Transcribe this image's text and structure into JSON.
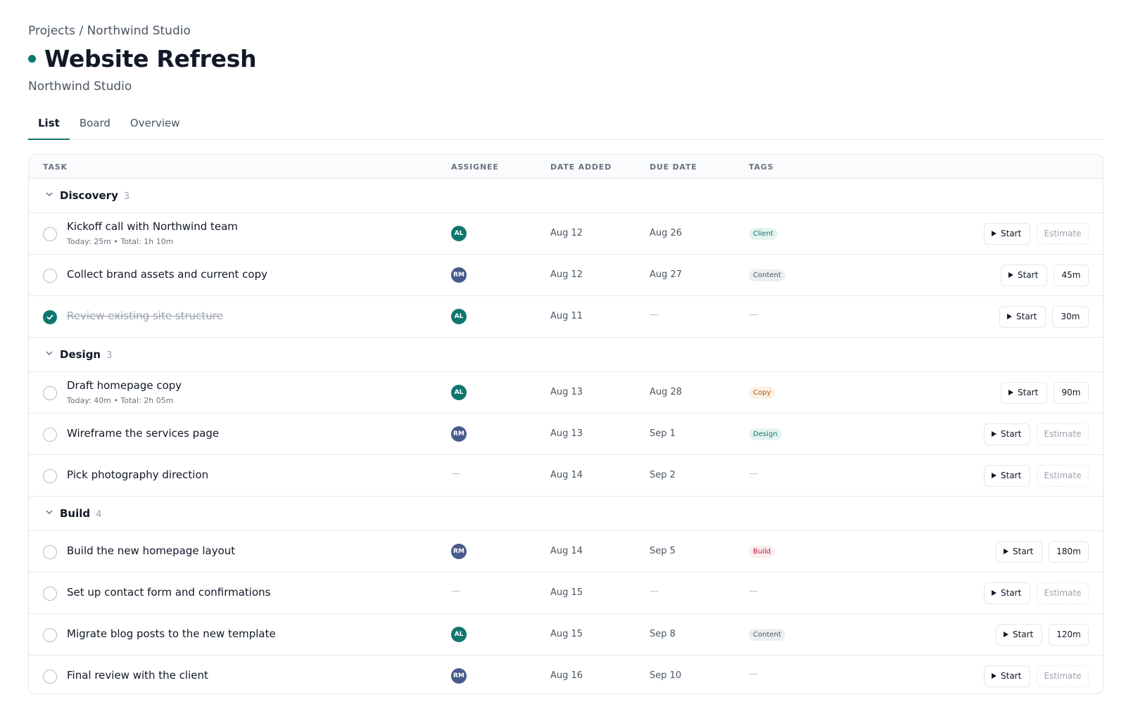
{
  "breadcrumb": {
    "parent": "Projects",
    "separator": "/",
    "current": "Northwind Studio"
  },
  "project": {
    "title": "Website Refresh",
    "subtitle": "Northwind Studio",
    "status_color": "#0f766e"
  },
  "tabs": [
    {
      "label": "List",
      "active": true
    },
    {
      "label": "Board",
      "active": false
    },
    {
      "label": "Overview",
      "active": false
    }
  ],
  "columns": {
    "task": "TASK",
    "assignee": "ASSIGNEE",
    "date_added": "DATE ADDED",
    "due_date": "DUE DATE",
    "tags": "TAGS"
  },
  "empty_value": "—",
  "actions": {
    "start_label": "Start",
    "estimate_placeholder": "Estimate"
  },
  "groups": [
    {
      "name": "Discovery",
      "count": "3",
      "tasks": [
        {
          "name": "Kickoff call with Northwind team",
          "meta": "Today: 25m • Total: 1h 10m",
          "done": false,
          "assignee": "AL",
          "date_added": "Aug 12",
          "due": "Aug 26",
          "tag": "Client",
          "estimate": ""
        },
        {
          "name": "Collect brand assets and current copy",
          "meta": "",
          "done": false,
          "assignee": "RM",
          "date_added": "Aug 12",
          "due": "Aug 27",
          "tag": "Content",
          "estimate": "45m"
        },
        {
          "name": "Review existing site structure",
          "meta": "",
          "done": true,
          "assignee": "AL",
          "date_added": "Aug 11",
          "due": "—",
          "tag": "—",
          "estimate": "30m"
        }
      ]
    },
    {
      "name": "Design",
      "count": "3",
      "tasks": [
        {
          "name": "Draft homepage copy",
          "meta": "Today: 40m • Total: 2h 05m",
          "done": false,
          "assignee": "AL",
          "date_added": "Aug 13",
          "due": "Aug 28",
          "tag": "Copy",
          "estimate": "90m"
        },
        {
          "name": "Wireframe the services page",
          "meta": "",
          "done": false,
          "assignee": "RM",
          "date_added": "Aug 13",
          "due": "Sep 1",
          "tag": "Design",
          "estimate": ""
        },
        {
          "name": "Pick photography direction",
          "meta": "",
          "done": false,
          "assignee": "—",
          "date_added": "Aug 14",
          "due": "Sep 2",
          "tag": "—",
          "estimate": ""
        }
      ]
    },
    {
      "name": "Build",
      "count": "4",
      "tasks": [
        {
          "name": "Build the new homepage layout",
          "meta": "",
          "done": false,
          "assignee": "RM",
          "date_added": "Aug 14",
          "due": "Sep 5",
          "tag": "Build",
          "estimate": "180m"
        },
        {
          "name": "Set up contact form and confirmations",
          "meta": "",
          "done": false,
          "assignee": "—",
          "date_added": "Aug 15",
          "due": "—",
          "tag": "—",
          "estimate": ""
        },
        {
          "name": "Migrate blog posts to the new template",
          "meta": "",
          "done": false,
          "assignee": "AL",
          "date_added": "Aug 15",
          "due": "Sep 8",
          "tag": "Content",
          "estimate": "120m"
        },
        {
          "name": "Final review with the client",
          "meta": "",
          "done": false,
          "assignee": "RM",
          "date_added": "Aug 16",
          "due": "Sep 10",
          "tag": "—",
          "estimate": ""
        }
      ]
    }
  ]
}
